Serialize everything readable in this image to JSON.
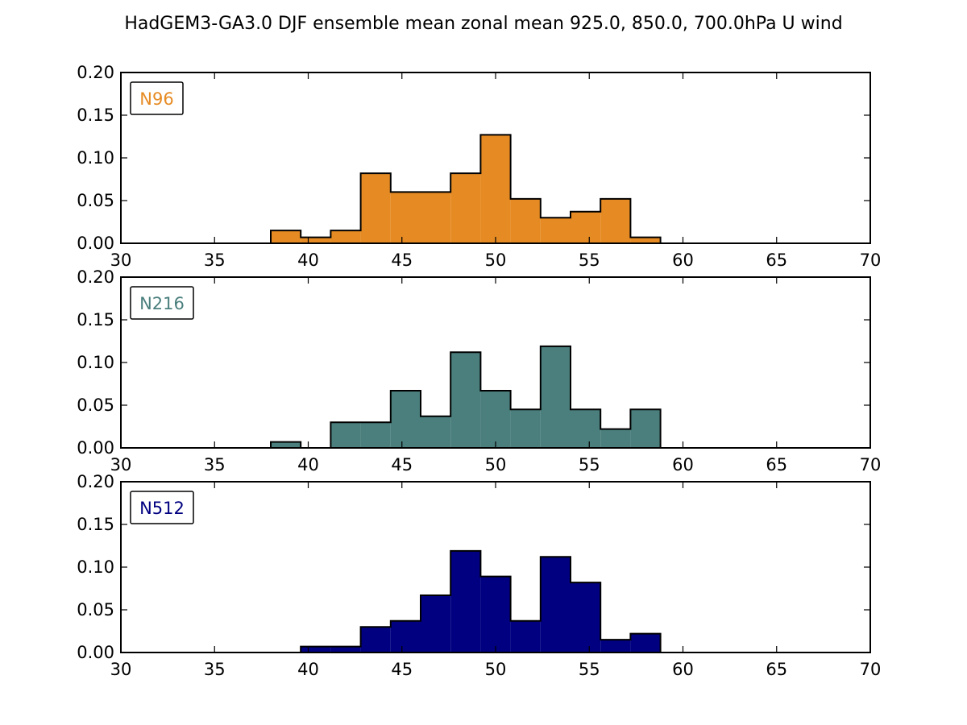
{
  "figure": {
    "title": "HadGEM3-GA3.0 DJF ensemble mean zonal mean 925.0, 850.0, 700.0hPa U wind"
  },
  "chart_data": [
    {
      "type": "bar",
      "subtype": "step-histogram",
      "legend_label": "N96",
      "legend_placement": "top-left",
      "color": "#e68b23",
      "xlim": [
        30,
        70
      ],
      "ylim": [
        0,
        0.2
      ],
      "xticks": [
        "30",
        "35",
        "40",
        "45",
        "50",
        "55",
        "60",
        "65",
        "70"
      ],
      "yticks": [
        "0.00",
        "0.05",
        "0.10",
        "0.15",
        "0.20"
      ],
      "grid": false,
      "bin_edges": [
        38.0,
        39.6,
        41.2,
        42.8,
        44.4,
        46.0,
        47.6,
        49.2,
        50.8,
        52.4,
        54.0,
        55.6,
        57.2,
        58.8
      ],
      "values": [
        0.015,
        0.007,
        0.015,
        0.082,
        0.06,
        0.06,
        0.082,
        0.127,
        0.052,
        0.03,
        0.037,
        0.052,
        0.007
      ]
    },
    {
      "type": "bar",
      "subtype": "step-histogram",
      "legend_label": "N216",
      "legend_placement": "top-left",
      "color": "#4a7f7d",
      "xlim": [
        30,
        70
      ],
      "ylim": [
        0,
        0.2
      ],
      "xticks": [
        "30",
        "35",
        "40",
        "45",
        "50",
        "55",
        "60",
        "65",
        "70"
      ],
      "yticks": [
        "0.00",
        "0.05",
        "0.10",
        "0.15",
        "0.20"
      ],
      "grid": false,
      "bin_edges": [
        38.0,
        39.6,
        41.2,
        42.8,
        44.4,
        46.0,
        47.6,
        49.2,
        50.8,
        52.4,
        54.0,
        55.6,
        57.2,
        58.8
      ],
      "values": [
        0.007,
        0.0,
        0.03,
        0.03,
        0.067,
        0.037,
        0.112,
        0.067,
        0.045,
        0.119,
        0.045,
        0.022,
        0.045
      ]
    },
    {
      "type": "bar",
      "subtype": "step-histogram",
      "legend_label": "N512",
      "legend_placement": "top-left",
      "color": "#000080",
      "xlim": [
        30,
        70
      ],
      "ylim": [
        0,
        0.2
      ],
      "xticks": [
        "30",
        "35",
        "40",
        "45",
        "50",
        "55",
        "60",
        "65",
        "70"
      ],
      "yticks": [
        "0.00",
        "0.05",
        "0.10",
        "0.15",
        "0.20"
      ],
      "grid": false,
      "bin_edges": [
        39.6,
        41.2,
        42.8,
        44.4,
        46.0,
        47.6,
        49.2,
        50.8,
        52.4,
        54.0,
        55.6,
        57.2,
        58.8
      ],
      "values": [
        0.007,
        0.007,
        0.03,
        0.037,
        0.067,
        0.119,
        0.089,
        0.037,
        0.112,
        0.082,
        0.015,
        0.022
      ]
    }
  ]
}
